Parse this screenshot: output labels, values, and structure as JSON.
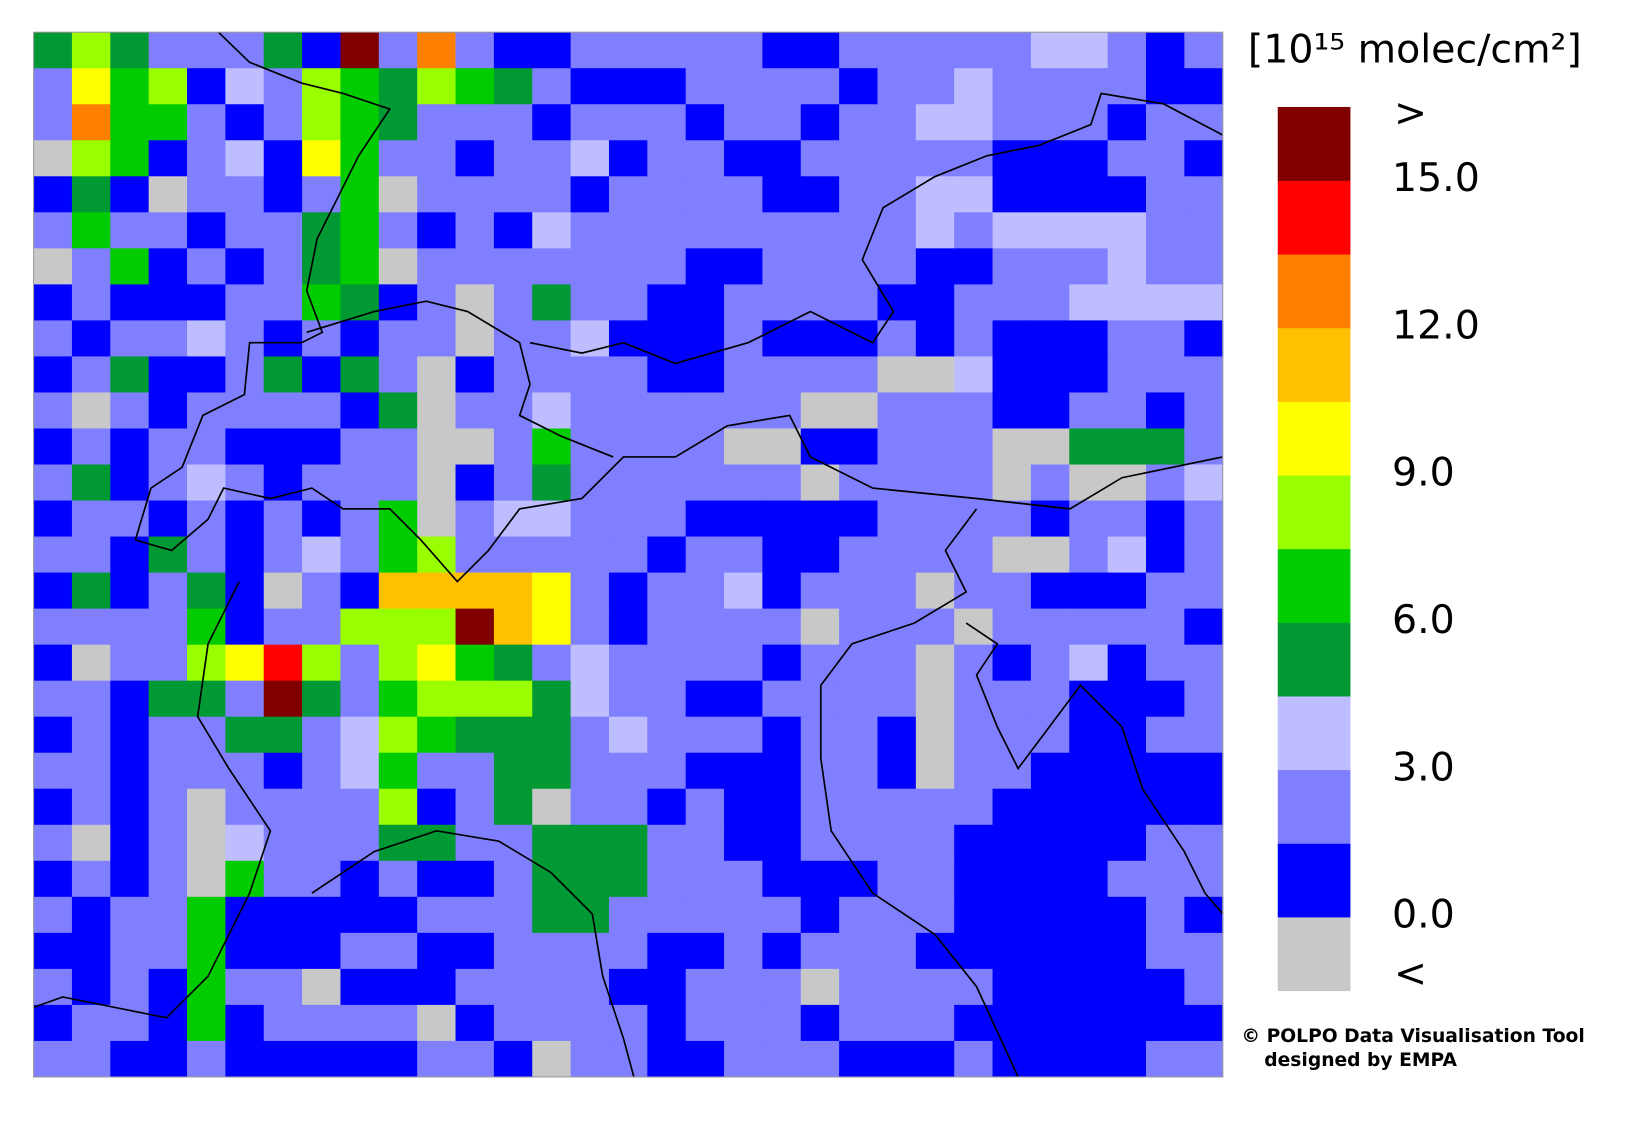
{
  "map": {
    "unit": "[10¹⁵ molec/cm²]",
    "colorbar": {
      "colors": [
        "#c8c8c8",
        "#0000ff",
        "#7f7fff",
        "#bdbdff",
        "#009933",
        "#00cc00",
        "#99ff00",
        "#ffff00",
        "#ffc000",
        "#ff8000",
        "#ff0000",
        "#800000"
      ],
      "lim": [
        -1.5,
        16.5
      ],
      "ticks": [
        {
          "value": 0,
          "label": "0.0"
        },
        {
          "value": 3,
          "label": "3.0"
        },
        {
          "value": 6,
          "label": "6.0"
        },
        {
          "value": 9,
          "label": "9.0"
        },
        {
          "value": 12,
          "label": "12.0"
        },
        {
          "value": 15,
          "label": "15.0"
        }
      ],
      "over_label": ">",
      "under_label": "<"
    },
    "cells": [
      "dydmmmdbRmOmbbmmmmmbbmmmmmllmbm",
      "mYGyblmyGdyGdmbbbmmmmbmmlmmmmbb",
      "mOGGmbmyGdmmmbmmmbmmbmmllmmmbmm",
      "gyGbmlbYGmmbmmlbmmbbmmmmmbbbmmb",
      "bdbgmmbmGgmmmmbmmmmbbmmllbbbbmm",
      "mGmmbmmdGmbmblmmmmmmmmmlmllllmm",
      "gmGbmbmdGgmmmmmmmbbmmmmbbmmmlmm",
      "bmbbbmmGdbmgmdmmbbmmmmbbmmmllll",
      "mbmmlmbmbmmgmmlbbbmbbbmbmbbbmmb",
      "bmdbbmdbdmgbmmmmbbmmmmgglbbbmmm",
      "mgmbmmmmbdgmmlmmmmmmggmmmbbmmbm",
      "bmbmmbbbmmggmGmmmmggbbmmmggdddm",
      "mdbmlmbmmmgbmdmmmmmmgmmmmgmggml",
      "bmmbmbmbmGgmllmmmbbbbbmmmmbmmbm",
      "mmbdmbmlmGymmmmmbmmbbmmmmggmlbm",
      "bdbmdbgmbooooYmbmmlbmmmgmmbbbmm",
      "mmmmGbmmyyyRoYmbmmmmgmmmgmmmmmb",
      "bgmmyYrymyYGdmlmmmmbmmmgmbmlbmm",
      "mmbddmRdmGyyydlmmbbmmmmgmmmbbbm",
      "bmbmmddmlyGdddmlmmmbmmbgmmmbbmm",
      "mmbmmmbmlGmmddmmmbbbmmbgmmbbbbb",
      "bmbmgmmmmybmdgmmbmbbmmmmmbbbbbb",
      "mgbmglmmmddmmdddmmbbmmmmbbbbbmm",
      "bmbmgGmmbmbbmdddmmmbbbmmbbbbmmm",
      "mbmmGbbbbbmmmddmmmmmbmmmbbbbbmb",
      "bbmmGbbbmmbbmmmmbbmbmmmbbbbbbmm",
      "mbmbGmmgbbbmmmmbbmmmgmmmmbbbbbm",
      "bmmbGbmmmmgbmmmmbmmmbmmmbbbbbbb",
      "mmbbmbbbbbmmbgmmbbmmmbbbmbbbbmm"
    ],
    "credit_line1": "© POLPO Data Visualisation Tool",
    "credit_line2": "designed by EMPA"
  }
}
